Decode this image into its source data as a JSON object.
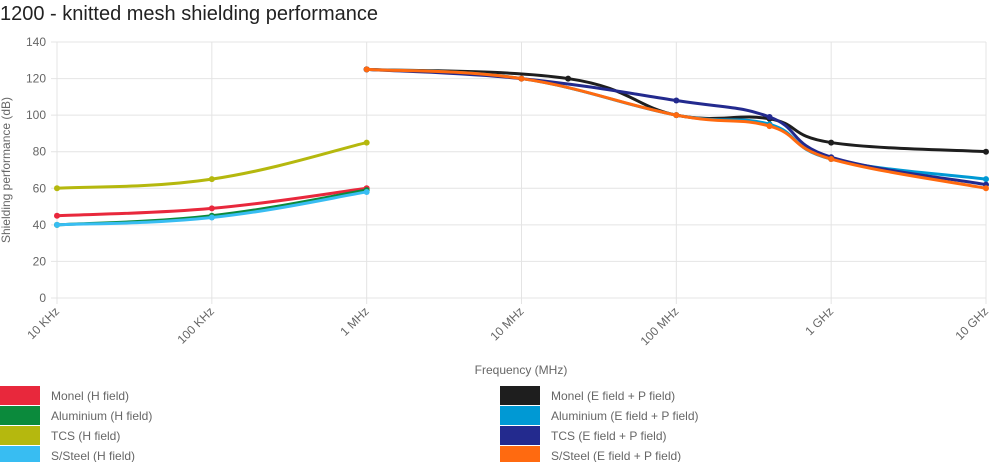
{
  "chart_data": {
    "type": "line",
    "title": "1200 - knitted mesh shielding performance",
    "x_label": "Frequency (MHz)",
    "y_label": "Shielding performance (dB)",
    "xscale": "log",
    "xlim": [
      0.01,
      10000
    ],
    "xticks": [
      {
        "value": 0.01,
        "label": "10 KHz"
      },
      {
        "value": 0.1,
        "label": "100 KHz"
      },
      {
        "value": 1,
        "label": "1 MHz"
      },
      {
        "value": 10,
        "label": "10 MHz"
      },
      {
        "value": 100,
        "label": "100 MHz"
      },
      {
        "value": 1000,
        "label": "1 GHz"
      },
      {
        "value": 10000,
        "label": "10 GHz"
      }
    ],
    "ylim": [
      0,
      140
    ],
    "yticks": [
      0,
      20,
      40,
      60,
      80,
      100,
      120,
      140
    ],
    "grid": true,
    "series": [
      {
        "name": "Monel (H field)",
        "color": "#e8283c",
        "x": [
          0.01,
          0.1,
          1
        ],
        "values": [
          45,
          49,
          60
        ]
      },
      {
        "name": "Monel (E field + P field)",
        "color": "#1e1e1e",
        "x": [
          1,
          20,
          100,
          400,
          1000,
          10000
        ],
        "values": [
          125,
          120,
          100,
          98,
          85,
          80
        ]
      },
      {
        "name": "Aluminium (H field)",
        "color": "#0b8a3c",
        "x": [
          0.01,
          0.1,
          1
        ],
        "values": [
          40,
          45,
          59
        ]
      },
      {
        "name": "Aluminium (E field + P field)",
        "color": "#0099d4",
        "x": [
          1,
          10,
          100,
          400,
          1000,
          10000
        ],
        "values": [
          125,
          120,
          100,
          95,
          76,
          65
        ]
      },
      {
        "name": "TCS (H field)",
        "color": "#b5b80e",
        "x": [
          0.01,
          0.1,
          1
        ],
        "values": [
          60,
          65,
          85
        ]
      },
      {
        "name": "TCS (E field + P field)",
        "color": "#232a8e",
        "x": [
          1,
          10,
          100,
          400,
          1000,
          10000
        ],
        "values": [
          125,
          120,
          108,
          99,
          77,
          62
        ]
      },
      {
        "name": "S/Steel (H field)",
        "color": "#38bdf2",
        "x": [
          0.01,
          0.1,
          1
        ],
        "values": [
          40,
          44,
          58
        ]
      },
      {
        "name": "S/Steel (E field + P field)",
        "color": "#ff6a10",
        "x": [
          1,
          10,
          100,
          400,
          1000,
          10000
        ],
        "values": [
          125,
          120,
          100,
          94,
          76,
          60
        ]
      }
    ]
  }
}
